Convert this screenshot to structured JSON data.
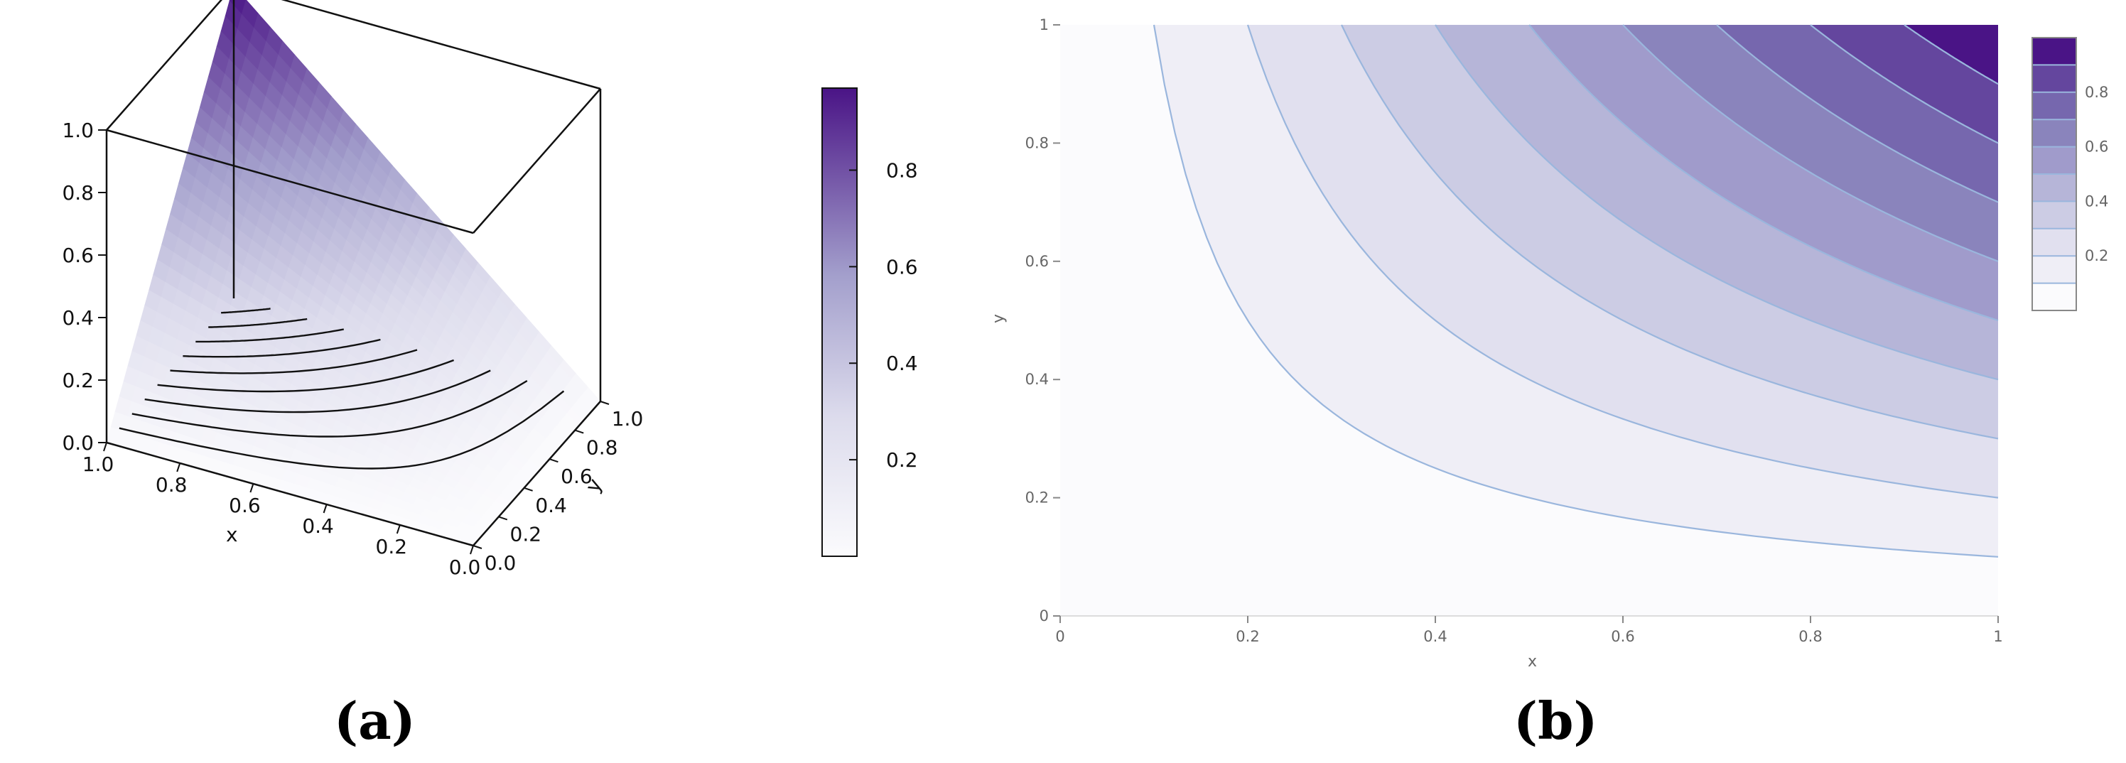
{
  "panels": {
    "a_label": "(a)",
    "b_label": "(b)"
  },
  "chart_data": [
    {
      "type": "surface3d",
      "function": "z = x*y",
      "x_ticks": [
        "1.0",
        "0.8",
        "0.6",
        "0.4",
        "0.2",
        "0.0"
      ],
      "y_ticks": [
        "0.0",
        "0.2",
        "0.4",
        "0.6",
        "0.8",
        "1.0"
      ],
      "z_ticks": [
        "1.0",
        "0.8",
        "0.6",
        "0.4",
        "0.2",
        "0.0"
      ],
      "xlabel": "x",
      "ylabel": "y",
      "xlim": [
        0,
        1
      ],
      "ylim": [
        0,
        1
      ],
      "zlim": [
        0,
        1
      ],
      "colorbar": {
        "ticks": [
          "0.8",
          "0.6",
          "0.4",
          "0.2"
        ],
        "range": [
          0,
          0.97
        ]
      },
      "contour_levels": [
        0.1,
        0.2,
        0.3,
        0.4,
        0.5,
        0.6,
        0.7,
        0.8,
        0.9
      ],
      "colors": {
        "low": "#fbfbfd",
        "high": "#4a1486",
        "line": "#111111"
      }
    },
    {
      "type": "contour",
      "function": "z = x*y",
      "x_ticks": [
        "0",
        "0.2",
        "0.4",
        "0.6",
        "0.8",
        "1"
      ],
      "y_ticks": [
        "0",
        "0.2",
        "0.4",
        "0.6",
        "0.8",
        "1"
      ],
      "xlabel": "x",
      "ylabel": "y",
      "xlim": [
        0,
        1
      ],
      "ylim": [
        0,
        1
      ],
      "levels": [
        0.1,
        0.2,
        0.3,
        0.4,
        0.5,
        0.6,
        0.7,
        0.8,
        0.9
      ],
      "band_colors": [
        "#fbfbfd",
        "#efeef6",
        "#e1e0ef",
        "#ccccE4",
        "#b6b5d8",
        "#a09bcb",
        "#8a84bc",
        "#7667ae",
        "#64469e",
        "#4a1486"
      ],
      "line_color": "#9ab6dd",
      "legend_ticks": [
        "0.8",
        "0.6",
        "0.4",
        "0.2"
      ],
      "legend_position": "right"
    }
  ]
}
